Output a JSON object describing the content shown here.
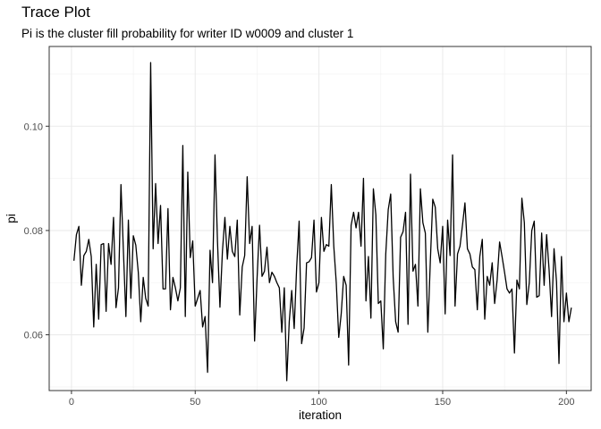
{
  "chart_data": {
    "type": "line",
    "title": "Trace Plot",
    "subtitle": "Pi is the cluster fill probability for writer ID w0009 and cluster 1",
    "xlabel": "iteration",
    "ylabel": "pi",
    "xlim": [
      -9,
      210
    ],
    "ylim": [
      0.0493,
      0.1153
    ],
    "x_ticks": [
      0,
      50,
      100,
      150,
      200
    ],
    "x_tick_labels": [
      "0",
      "50",
      "100",
      "150",
      "200"
    ],
    "y_ticks": [
      0.06,
      0.08,
      0.1
    ],
    "y_tick_labels": [
      "0.06",
      "0.08",
      "0.10"
    ],
    "grid": true,
    "legend": "none",
    "line_color": "#000000",
    "x_start": 1,
    "values": [
      0.0742,
      0.0792,
      0.0808,
      0.0695,
      0.0752,
      0.076,
      0.0783,
      0.075,
      0.0615,
      0.0735,
      0.063,
      0.0773,
      0.0775,
      0.0645,
      0.0775,
      0.0735,
      0.0825,
      0.0652,
      0.069,
      0.0888,
      0.076,
      0.0635,
      0.082,
      0.067,
      0.079,
      0.0772,
      0.072,
      0.0625,
      0.071,
      0.067,
      0.0655,
      0.1122,
      0.0765,
      0.089,
      0.0775,
      0.0848,
      0.0688,
      0.0688,
      0.0842,
      0.0648,
      0.071,
      0.069,
      0.0665,
      0.069,
      0.0963,
      0.0635,
      0.0912,
      0.0748,
      0.078,
      0.0655,
      0.067,
      0.0685,
      0.0615,
      0.0635,
      0.0528,
      0.0762,
      0.07,
      0.0945,
      0.078,
      0.0653,
      0.076,
      0.0825,
      0.0745,
      0.0808,
      0.076,
      0.075,
      0.082,
      0.0638,
      0.073,
      0.0752,
      0.0903,
      0.0775,
      0.0808,
      0.0588,
      0.0708,
      0.081,
      0.0712,
      0.0722,
      0.0768,
      0.07,
      0.072,
      0.0712,
      0.07,
      0.069,
      0.0605,
      0.069,
      0.0512,
      0.0625,
      0.0685,
      0.0612,
      0.073,
      0.0818,
      0.0583,
      0.0613,
      0.0738,
      0.074,
      0.0748,
      0.082,
      0.0682,
      0.07,
      0.0825,
      0.076,
      0.0773,
      0.077,
      0.0888,
      0.077,
      0.07,
      0.0595,
      0.064,
      0.0712,
      0.0695,
      0.0542,
      0.081,
      0.0835,
      0.0805,
      0.0835,
      0.077,
      0.09,
      0.0665,
      0.075,
      0.0632,
      0.088,
      0.083,
      0.066,
      0.0665,
      0.0573,
      0.0755,
      0.084,
      0.087,
      0.071,
      0.0625,
      0.0605,
      0.0787,
      0.0798,
      0.0835,
      0.062,
      0.0908,
      0.0722,
      0.0735,
      0.0655,
      0.088,
      0.0815,
      0.0795,
      0.0605,
      0.074,
      0.086,
      0.0845,
      0.0765,
      0.0738,
      0.0808,
      0.064,
      0.082,
      0.0752,
      0.0945,
      0.0655,
      0.0755,
      0.077,
      0.081,
      0.0853,
      0.0765,
      0.0755,
      0.073,
      0.0725,
      0.0648,
      0.075,
      0.0783,
      0.063,
      0.0712,
      0.0695,
      0.0738,
      0.066,
      0.0705,
      0.0778,
      0.075,
      0.072,
      0.0688,
      0.068,
      0.0688,
      0.0565,
      0.0705,
      0.0688,
      0.0862,
      0.0815,
      0.0658,
      0.07,
      0.08,
      0.0818,
      0.0672,
      0.0675,
      0.0795,
      0.0695,
      0.0792,
      0.0725,
      0.0635,
      0.0765,
      0.0702,
      0.0545,
      0.075,
      0.0625,
      0.068,
      0.0625,
      0.0652
    ]
  }
}
